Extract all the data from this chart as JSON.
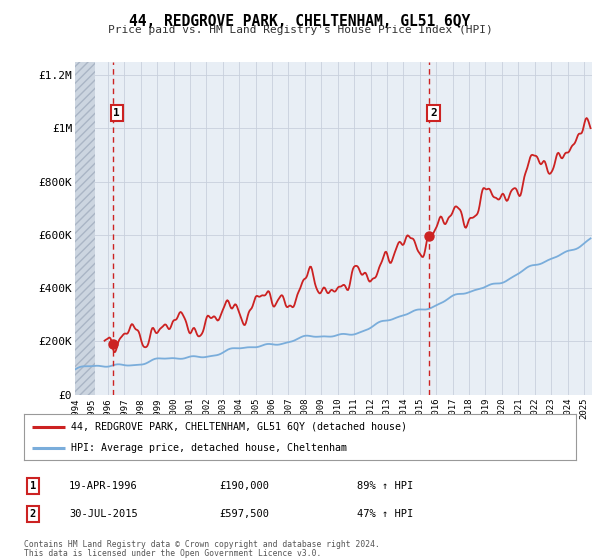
{
  "title": "44, REDGROVE PARK, CHELTENHAM, GL51 6QY",
  "subtitle": "Price paid vs. HM Land Registry's House Price Index (HPI)",
  "ylim": [
    0,
    1250000
  ],
  "xlim_start": 1994.0,
  "xlim_end": 2025.5,
  "sale1_date": 1996.3,
  "sale1_price": 190000,
  "sale1_text": "19-APR-1996",
  "sale1_amount": "£190,000",
  "sale1_hpi": "89% ↑ HPI",
  "sale2_date": 2015.58,
  "sale2_price": 597500,
  "sale2_text": "30-JUL-2015",
  "sale2_amount": "£597,500",
  "sale2_hpi": "47% ↑ HPI",
  "hpi_color": "#7aaddb",
  "price_color": "#cc2222",
  "dashed_color": "#cc2222",
  "legend_label1": "44, REDGROVE PARK, CHELTENHAM, GL51 6QY (detached house)",
  "legend_label2": "HPI: Average price, detached house, Cheltenham",
  "footer1": "Contains HM Land Registry data © Crown copyright and database right 2024.",
  "footer2": "This data is licensed under the Open Government Licence v3.0.",
  "bg_color": "#ffffff",
  "plot_bg_color": "#e8eef5",
  "grid_color": "#c8d0dc",
  "yticks": [
    0,
    200000,
    400000,
    600000,
    800000,
    1000000,
    1200000
  ],
  "ytick_labels": [
    "£0",
    "£200K",
    "£400K",
    "£600K",
    "£800K",
    "£1M",
    "£1.2M"
  ]
}
